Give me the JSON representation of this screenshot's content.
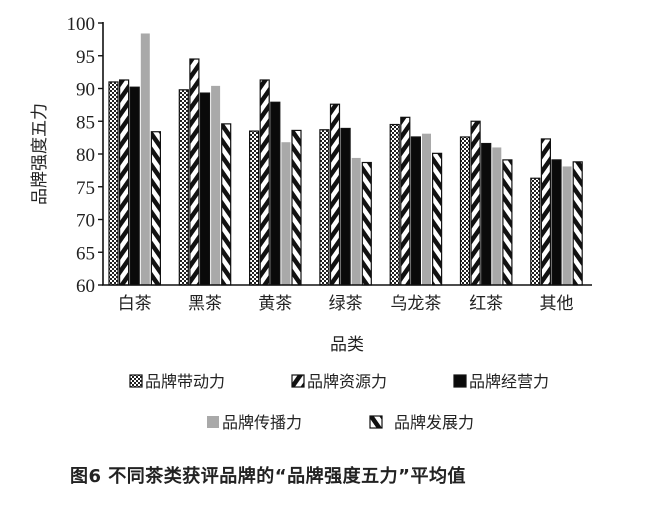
{
  "chart_data": {
    "type": "bar",
    "title": "",
    "xlabel": "品类",
    "ylabel": "品牌强度五力",
    "ylim": [
      60,
      100
    ],
    "yticks": [
      60,
      65,
      70,
      75,
      80,
      85,
      90,
      95,
      100
    ],
    "grid": false,
    "legend_position": "bottom",
    "categories": [
      "白茶",
      "黑茶",
      "黄茶",
      "绿茶",
      "乌龙茶",
      "红茶",
      "其他"
    ],
    "series": [
      {
        "name": "品牌带动力",
        "pattern": "checker",
        "values": [
          91.0,
          89.8,
          83.5,
          83.7,
          84.5,
          82.6,
          76.3
        ]
      },
      {
        "name": "品牌资源力",
        "pattern": "forward-diagonal",
        "values": [
          91.3,
          94.5,
          91.3,
          87.6,
          85.6,
          85.0,
          82.3
        ]
      },
      {
        "name": "品牌经营力",
        "pattern": "solid-black",
        "values": [
          90.2,
          89.3,
          87.9,
          83.9,
          82.6,
          81.6,
          79.1
        ]
      },
      {
        "name": "品牌传播力",
        "pattern": "solid-gray",
        "values": [
          98.4,
          90.4,
          81.8,
          79.4,
          83.1,
          81.0,
          78.1
        ]
      },
      {
        "name": "品牌发展力",
        "pattern": "back-diagonal",
        "values": [
          83.4,
          84.6,
          83.6,
          78.7,
          80.1,
          79.1,
          78.8
        ]
      }
    ],
    "caption": "图6  不同茶类获评品牌的“品牌强度五力”平均值"
  },
  "colors": {
    "axis": "#111111",
    "black_bar": "#0a0a0a",
    "gray_bar": "#a9a9a9",
    "text": "#222222"
  }
}
